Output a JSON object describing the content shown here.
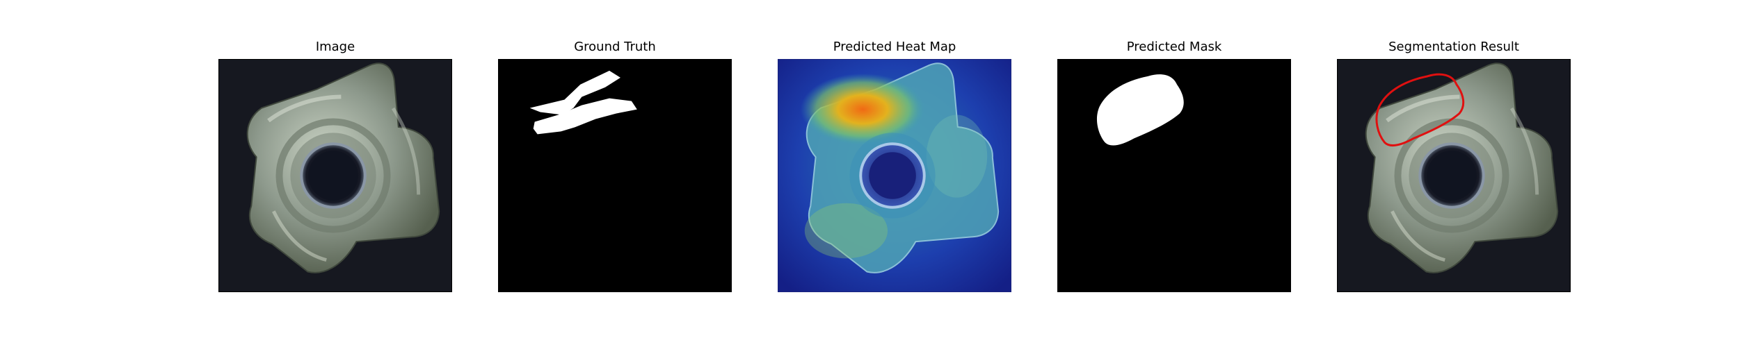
{
  "figure": {
    "panels": [
      {
        "id": "image",
        "title": "Image",
        "content": "tee-nut-photo"
      },
      {
        "id": "ground_truth",
        "title": "Ground Truth",
        "content": "binary-ground-truth-mask"
      },
      {
        "id": "heat_map",
        "title": "Predicted Heat Map",
        "content": "anomaly-heatmap-overlay"
      },
      {
        "id": "predicted_mask",
        "title": "Predicted Mask",
        "content": "binary-predicted-mask"
      },
      {
        "id": "segmentation",
        "title": "Segmentation Result",
        "content": "photo-with-red-contour"
      }
    ],
    "colors": {
      "background": "#ffffff",
      "photo_background": "#161820",
      "metal": "#9aa699",
      "mask_foreground": "#ffffff",
      "mask_background": "#000000",
      "contour": "#e01010",
      "heat_low": "#1a2a9a",
      "heat_high": "#e85a10"
    }
  }
}
